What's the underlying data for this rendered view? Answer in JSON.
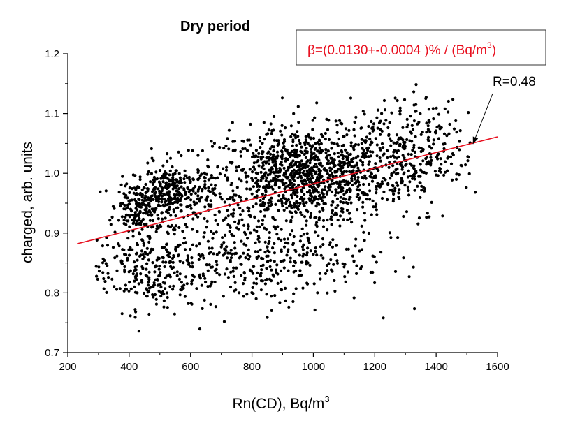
{
  "chart_data": {
    "type": "scatter",
    "title": "Dry period",
    "xlabel": "Rn(CD), Bq/m",
    "xlabel_sup": "3",
    "ylabel": "charged, arb. units",
    "xlim": [
      200,
      1600
    ],
    "ylim": [
      0.7,
      1.2
    ],
    "x_ticks": [
      "200",
      "400",
      "600",
      "800",
      "1000",
      "1200",
      "1400",
      "1600"
    ],
    "y_ticks": [
      "0.7",
      "0.8",
      "0.9",
      "1.0",
      "1.1",
      "1.2"
    ],
    "n_points": 2600,
    "point_color": "#000000",
    "fit_line": {
      "x": [
        230,
        1600
      ],
      "y": [
        0.882,
        1.061
      ],
      "color": "#e8101f"
    },
    "annotations": {
      "beta_prefix": "β=(0.0130+-0.0004 )% / (Bq/m",
      "beta_sup": "3",
      "beta_suffix": ")",
      "beta_color": "#e8101f",
      "r_value": "R=0.48",
      "arrow_target": [
        1520,
        1.049
      ]
    },
    "clusters": [
      {
        "cx": 960,
        "cy": 0.995,
        "sx": 140,
        "sy": 0.04,
        "weight": 0.4
      },
      {
        "cx": 550,
        "cy": 0.965,
        "sx": 65,
        "sy": 0.025,
        "weight": 0.12
      },
      {
        "cx": 430,
        "cy": 0.945,
        "sx": 35,
        "sy": 0.02,
        "weight": 0.06
      },
      {
        "cx": 1220,
        "cy": 1.02,
        "sx": 110,
        "sy": 0.05,
        "weight": 0.1
      },
      {
        "cx": 820,
        "cy": 0.86,
        "sx": 180,
        "sy": 0.04,
        "weight": 0.16
      },
      {
        "cx": 450,
        "cy": 0.84,
        "sx": 90,
        "sy": 0.035,
        "weight": 0.1
      },
      {
        "cx": 1370,
        "cy": 1.05,
        "sx": 80,
        "sy": 0.04,
        "weight": 0.06
      }
    ]
  }
}
